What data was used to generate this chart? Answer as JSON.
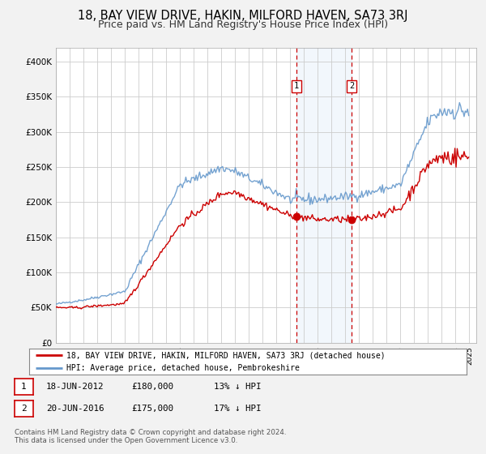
{
  "title": "18, BAY VIEW DRIVE, HAKIN, MILFORD HAVEN, SA73 3RJ",
  "subtitle": "Price paid vs. HM Land Registry's House Price Index (HPI)",
  "ylim": [
    0,
    420000
  ],
  "yticks": [
    0,
    50000,
    100000,
    150000,
    200000,
    250000,
    300000,
    350000,
    400000
  ],
  "ytick_labels": [
    "£0",
    "£50K",
    "£100K",
    "£150K",
    "£200K",
    "£250K",
    "£300K",
    "£350K",
    "£400K"
  ],
  "xlim_start": 1995.0,
  "xlim_end": 2025.5,
  "red_line_color": "#cc0000",
  "blue_line_color": "#6699cc",
  "sale1_date": 2012.46,
  "sale1_price": 180000,
  "sale2_date": 2016.46,
  "sale2_price": 175000,
  "vline1_x": 2012.46,
  "vline2_x": 2016.46,
  "shade_start": 2012.46,
  "shade_end": 2016.46,
  "legend_label_red": "18, BAY VIEW DRIVE, HAKIN, MILFORD HAVEN, SA73 3RJ (detached house)",
  "legend_label_blue": "HPI: Average price, detached house, Pembrokeshire",
  "note1_num": "1",
  "note1_date": "18-JUN-2012",
  "note1_price": "£180,000",
  "note1_hpi": "13% ↓ HPI",
  "note2_num": "2",
  "note2_date": "20-JUN-2016",
  "note2_price": "£175,000",
  "note2_hpi": "17% ↓ HPI",
  "footer1": "Contains HM Land Registry data © Crown copyright and database right 2024.",
  "footer2": "This data is licensed under the Open Government Licence v3.0.",
  "background_color": "#f2f2f2",
  "plot_bg_color": "#ffffff",
  "grid_color": "#cccccc",
  "title_fontsize": 10.5,
  "subtitle_fontsize": 9.0
}
